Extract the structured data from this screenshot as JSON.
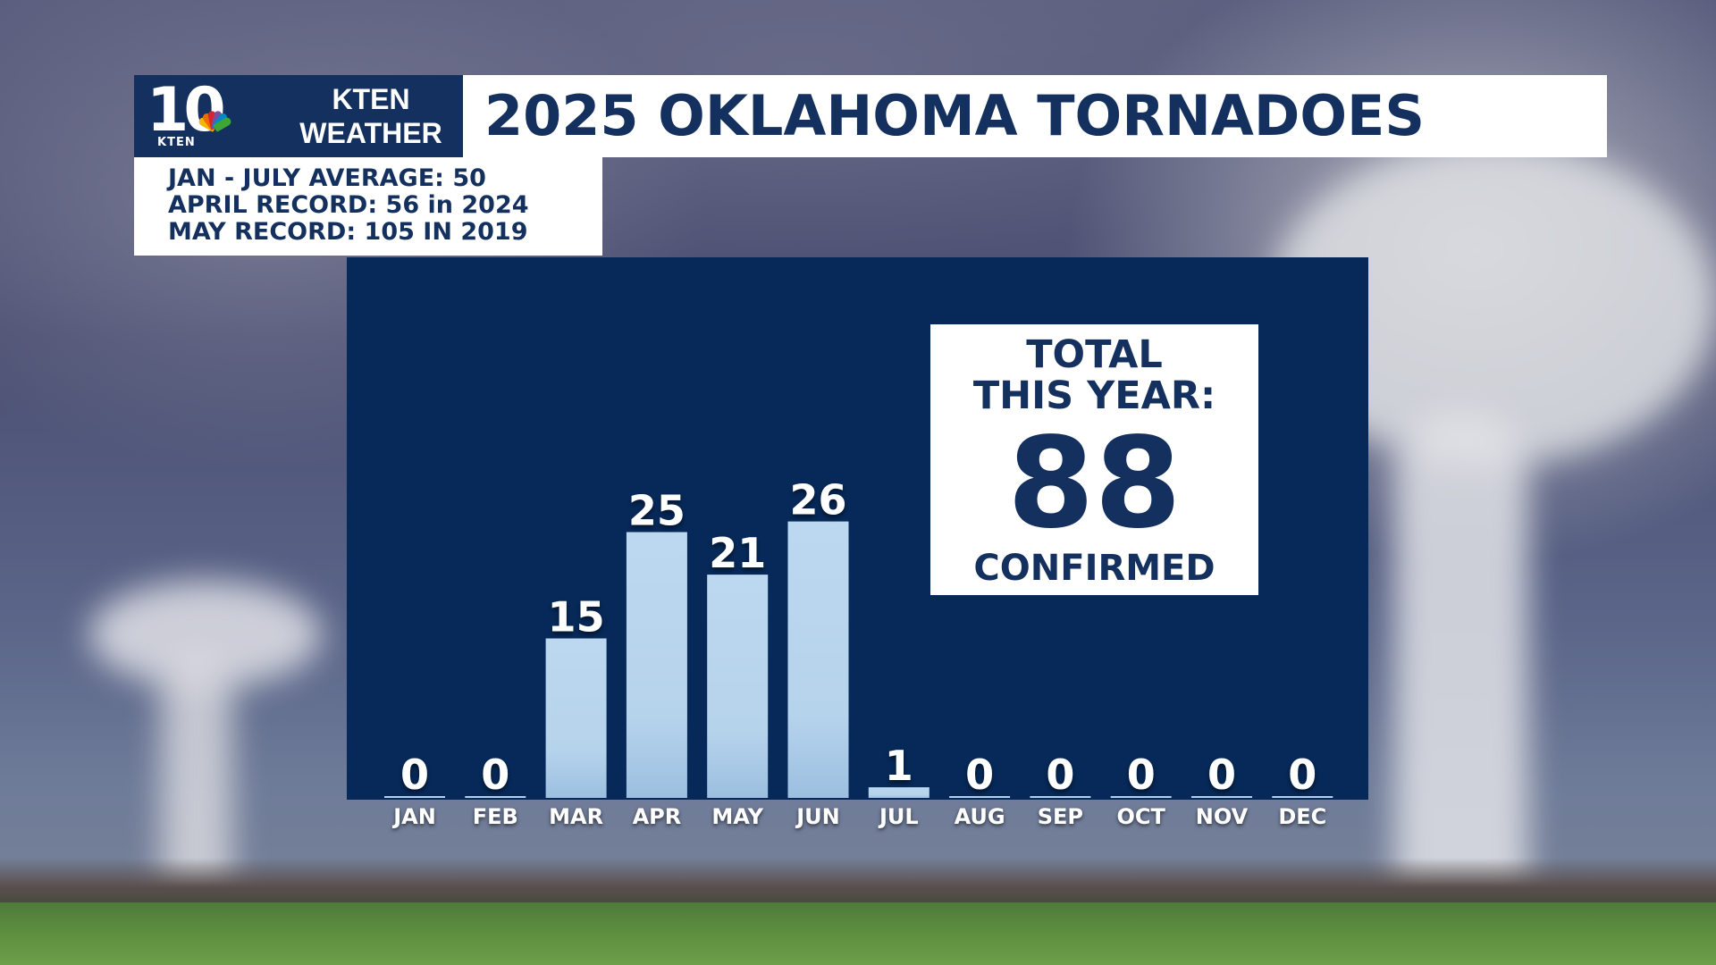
{
  "header": {
    "logo_number": "10",
    "logo_small": "KTEN",
    "logo_line1": "KTEN",
    "logo_line2": "WEATHER",
    "title": "2025 OKLAHOMA TORNADOES"
  },
  "info": {
    "line1": "JAN - JULY AVERAGE: 50",
    "line2": "APRIL RECORD: 56 in 2024",
    "line3": "MAY RECORD: 105 IN 2019"
  },
  "total": {
    "line1": "TOTAL",
    "line2": "THIS YEAR:",
    "value": "88",
    "line3": "CONFIRMED"
  },
  "colors": {
    "navy": "#14305e",
    "panel": "#06295a",
    "bar": "#b9d6ef"
  },
  "chart_data": {
    "type": "bar",
    "categories": [
      "JAN",
      "FEB",
      "MAR",
      "APR",
      "MAY",
      "JUN",
      "JUL",
      "AUG",
      "SEP",
      "OCT",
      "NOV",
      "DEC"
    ],
    "values": [
      0,
      0,
      15,
      25,
      21,
      26,
      1,
      0,
      0,
      0,
      0,
      0
    ],
    "title": "2025 OKLAHOMA TORNADOES",
    "xlabel": "",
    "ylabel": "",
    "grid": false,
    "legend": "none",
    "data_labels": true
  }
}
